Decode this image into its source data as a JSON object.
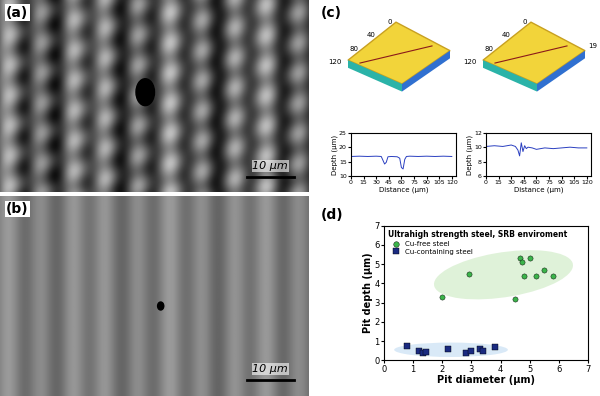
{
  "panels": [
    {
      "label": "(a)",
      "type": "image",
      "scale_bar": "10 μm"
    },
    {
      "label": "(b)",
      "type": "image",
      "scale_bar": "10 μm"
    },
    {
      "label": "(c)",
      "type": "surfaces",
      "surfaces": [
        {
          "ticks": [
            0,
            40,
            80,
            120
          ]
        },
        {
          "ticks": [
            0,
            40,
            80,
            120
          ],
          "z_tick": 19
        }
      ]
    },
    {
      "label": "(d)",
      "type": "chart"
    }
  ],
  "chart_data": [
    {
      "type": "line",
      "x_label": "Distance (μm)",
      "y_label": "Depth (μm)",
      "color": "#2a3fc0",
      "x": [
        0,
        10,
        20,
        30,
        36,
        38,
        40,
        42,
        44,
        48,
        55,
        58,
        60,
        62,
        64,
        66,
        70,
        80,
        90,
        100,
        110,
        120
      ],
      "values": [
        16.8,
        16.9,
        16.8,
        16.9,
        16.8,
        15.5,
        14.2,
        14.8,
        16.7,
        16.8,
        16.7,
        16.2,
        13.0,
        12.5,
        15.8,
        16.8,
        16.9,
        16.8,
        16.9,
        16.8,
        16.9,
        16.8
      ],
      "xlim": [
        0,
        125
      ],
      "xticks": [
        0,
        15,
        30,
        45,
        60,
        75,
        90,
        105,
        120
      ],
      "ylim": [
        10,
        25
      ],
      "yticks": [
        10,
        15,
        20,
        25
      ]
    },
    {
      "type": "line",
      "x_label": "Distance (μm)",
      "y_label": "Depth (μm)",
      "color": "#2a3fc0",
      "x": [
        0,
        10,
        20,
        30,
        35,
        38,
        40,
        42,
        44,
        46,
        48,
        50,
        55,
        60,
        70,
        80,
        90,
        100,
        110,
        120
      ],
      "values": [
        10.1,
        10.2,
        10.1,
        10.3,
        10.1,
        9.6,
        8.8,
        10.6,
        9.4,
        10.2,
        9.8,
        10.0,
        9.9,
        9.7,
        9.9,
        9.8,
        9.9,
        10.0,
        9.9,
        9.9
      ],
      "xlim": [
        0,
        125
      ],
      "xticks": [
        0,
        15,
        30,
        45,
        60,
        75,
        90,
        105,
        120
      ],
      "ylim": [
        6,
        12
      ],
      "yticks": [
        6,
        8,
        10,
        12
      ]
    },
    {
      "type": "scatter",
      "title": "Ultrahigh strength steel, SRB enviroment",
      "x_label": "Pit diameter (μm)",
      "y_label": "Pit depth (μm)",
      "xlim": [
        0,
        7
      ],
      "xticks": [
        0,
        1,
        2,
        3,
        4,
        5,
        6,
        7
      ],
      "ylim": [
        0,
        7
      ],
      "yticks": [
        0,
        1,
        2,
        3,
        4,
        5,
        6,
        7
      ],
      "legend": "upper left",
      "series": [
        {
          "name": "Cu-free steel",
          "color": "#3cb44b",
          "marker": "o",
          "x": [
            2.0,
            2.9,
            4.5,
            4.65,
            4.75,
            4.8,
            5.0,
            5.2,
            5.5,
            5.8
          ],
          "values": [
            3.3,
            4.5,
            3.2,
            5.3,
            5.1,
            4.4,
            5.3,
            4.4,
            4.7,
            4.4
          ]
        },
        {
          "name": "Cu-containing steel",
          "color": "#1a2a80",
          "marker": "s",
          "x": [
            0.8,
            1.2,
            1.35,
            1.45,
            2.2,
            2.8,
            3.0,
            3.3,
            3.4,
            3.8
          ],
          "values": [
            0.75,
            0.5,
            0.4,
            0.45,
            0.6,
            0.4,
            0.5,
            0.6,
            0.5,
            0.7
          ]
        }
      ]
    }
  ]
}
